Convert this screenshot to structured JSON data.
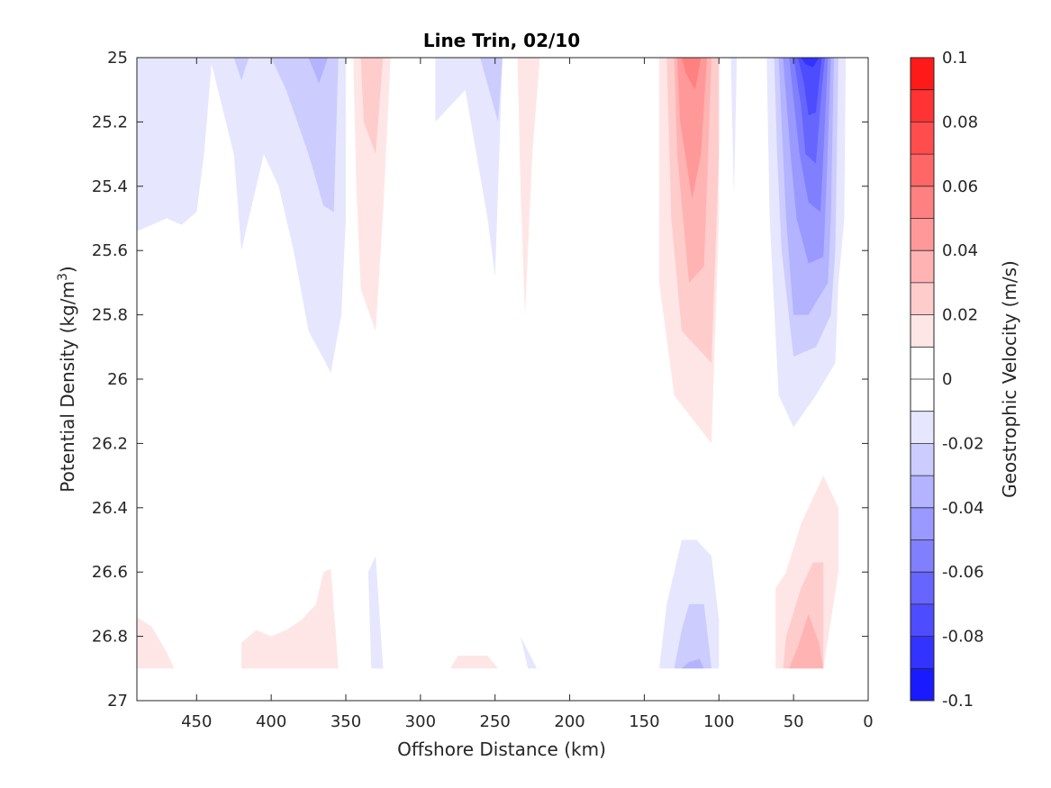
{
  "chart_data": {
    "type": "heatmap",
    "subtype": "filled-contour",
    "title": "Line Trin, 02/10",
    "xlabel": "Offshore Distance (km)",
    "ylabel_main": "Potential Density (kg/m",
    "ylabel_sup": "3",
    "ylabel_end": ")",
    "xlim": [
      490,
      0
    ],
    "ylim": [
      27,
      25
    ],
    "x_reversed": true,
    "y_reversed": true,
    "x_ticks": [
      450,
      400,
      350,
      300,
      250,
      200,
      150,
      100,
      50,
      0
    ],
    "x_tick_labels": [
      "450",
      "400",
      "350",
      "300",
      "250",
      "200",
      "150",
      "100",
      "50",
      "0"
    ],
    "y_ticks": [
      25,
      25.2,
      25.4,
      25.6,
      25.8,
      26,
      26.2,
      26.4,
      26.6,
      26.8,
      27
    ],
    "y_tick_labels": [
      "25",
      "25.2",
      "25.4",
      "25.6",
      "25.8",
      "26",
      "26.2",
      "26.4",
      "26.6",
      "26.8",
      "27"
    ],
    "colorbar": {
      "label": "Geostrophic Velocity (m/s)",
      "range": [
        -0.1,
        0.1
      ],
      "levels": [
        -0.1,
        -0.09,
        -0.08,
        -0.07,
        -0.06,
        -0.05,
        -0.04,
        -0.03,
        -0.02,
        -0.01,
        0,
        0.01,
        0.02,
        0.03,
        0.04,
        0.05,
        0.06,
        0.07,
        0.08,
        0.09,
        0.1
      ],
      "tick_values": [
        0.1,
        0.08,
        0.06,
        0.04,
        0.02,
        0,
        -0.02,
        -0.04,
        -0.06,
        -0.08,
        -0.1
      ],
      "tick_labels": [
        "0.1",
        "0.08",
        "0.06",
        "0.04",
        "0.02",
        "0",
        "-0.02",
        "-0.04",
        "-0.06",
        "-0.08",
        "-0.1"
      ],
      "colors_top_to_bottom": [
        "#ff1a1a",
        "#ff3333",
        "#ff4d4d",
        "#ff6666",
        "#ff8080",
        "#ff9999",
        "#ffb3b3",
        "#ffcccc",
        "#ffe6e6",
        "#ffffff",
        "#ffffff",
        "#e6e6ff",
        "#ccccff",
        "#b3b3ff",
        "#9999ff",
        "#8080ff",
        "#6666ff",
        "#4d4dff",
        "#3333ff",
        "#1a1aff"
      ]
    },
    "regions": [
      {
        "name": "neg-offshore-470-350",
        "level": -0.01,
        "points": [
          [
            490,
            25
          ],
          [
            350,
            25
          ],
          [
            350,
            25.5
          ],
          [
            353,
            25.8
          ],
          [
            360,
            25.98
          ],
          [
            375,
            25.85
          ],
          [
            385,
            25.6
          ],
          [
            395,
            25.4
          ],
          [
            405,
            25.3
          ],
          [
            415,
            25.5
          ],
          [
            420,
            25.6
          ],
          [
            425,
            25.3
          ],
          [
            440,
            25.02
          ],
          [
            445,
            25.3
          ],
          [
            450,
            25.48
          ],
          [
            460,
            25.52
          ],
          [
            470,
            25.5
          ],
          [
            490,
            25.54
          ]
        ]
      },
      {
        "name": "neg-400-360-lvl2",
        "level": -0.02,
        "points": [
          [
            400,
            25
          ],
          [
            355,
            25
          ],
          [
            358,
            25.48
          ],
          [
            365,
            25.46
          ],
          [
            375,
            25.3
          ],
          [
            390,
            25.1
          ],
          [
            400,
            25
          ]
        ]
      },
      {
        "name": "neg-420-lvl2",
        "level": -0.02,
        "points": [
          [
            425,
            25
          ],
          [
            415,
            25
          ],
          [
            420,
            25.07
          ]
        ]
      },
      {
        "name": "neg-370-lvl3",
        "level": -0.03,
        "points": [
          [
            375,
            25
          ],
          [
            362,
            25
          ],
          [
            368,
            25.08
          ]
        ]
      },
      {
        "name": "pos-330",
        "level": 0.01,
        "points": [
          [
            345,
            25
          ],
          [
            320,
            25
          ],
          [
            325,
            25.48
          ],
          [
            330,
            25.85
          ],
          [
            340,
            25.72
          ],
          [
            343,
            25.4
          ]
        ]
      },
      {
        "name": "pos-330-lvl2",
        "level": 0.02,
        "points": [
          [
            340,
            25
          ],
          [
            325,
            25
          ],
          [
            330,
            25.3
          ],
          [
            338,
            25.2
          ]
        ]
      },
      {
        "name": "neg-270-250",
        "level": -0.01,
        "points": [
          [
            290,
            25
          ],
          [
            245,
            25
          ],
          [
            250,
            25.68
          ],
          [
            255,
            25.5
          ],
          [
            270,
            25.1
          ],
          [
            290,
            25.2
          ]
        ]
      },
      {
        "name": "neg-260-lvl2",
        "level": -0.02,
        "points": [
          [
            260,
            25
          ],
          [
            245,
            25
          ],
          [
            248,
            25.2
          ]
        ]
      },
      {
        "name": "pos-225",
        "level": 0.01,
        "points": [
          [
            235,
            25
          ],
          [
            220,
            25
          ],
          [
            225,
            25.3
          ],
          [
            230,
            25.8
          ],
          [
            233,
            25.4
          ]
        ]
      },
      {
        "name": "pos-120-lvl1",
        "level": 0.01,
        "points": [
          [
            140,
            25
          ],
          [
            100,
            25
          ],
          [
            100,
            25.5
          ],
          [
            105,
            26.2
          ],
          [
            130,
            26.05
          ],
          [
            140,
            25.7
          ]
        ]
      },
      {
        "name": "pos-120-lvl2",
        "level": 0.02,
        "points": [
          [
            135,
            25
          ],
          [
            100,
            25
          ],
          [
            100,
            25.3
          ],
          [
            105,
            25.95
          ],
          [
            125,
            25.85
          ],
          [
            132,
            25.5
          ]
        ]
      },
      {
        "name": "pos-120-lvl3",
        "level": 0.03,
        "points": [
          [
            130,
            25
          ],
          [
            105,
            25
          ],
          [
            108,
            25.4
          ],
          [
            110,
            25.65
          ],
          [
            120,
            25.7
          ],
          [
            128,
            25.3
          ]
        ]
      },
      {
        "name": "pos-120-lvl4",
        "level": 0.04,
        "points": [
          [
            128,
            25
          ],
          [
            108,
            25
          ],
          [
            112,
            25.3
          ],
          [
            118,
            25.44
          ],
          [
            126,
            25.2
          ]
        ]
      },
      {
        "name": "pos-120-lvl5",
        "level": 0.05,
        "points": [
          [
            125,
            25
          ],
          [
            112,
            25
          ],
          [
            116,
            25.1
          ],
          [
            122,
            25.05
          ]
        ]
      },
      {
        "name": "neg-90",
        "level": -0.01,
        "points": [
          [
            92,
            25
          ],
          [
            88,
            25
          ],
          [
            90,
            25.43
          ]
        ]
      },
      {
        "name": "neg-coastal-lvl1",
        "level": -0.01,
        "points": [
          [
            68,
            25
          ],
          [
            15,
            25
          ],
          [
            16,
            25.5
          ],
          [
            20,
            25.7
          ],
          [
            22,
            25.95
          ],
          [
            35,
            26.05
          ],
          [
            50,
            26.15
          ],
          [
            60,
            26.05
          ],
          [
            66,
            25.5
          ]
        ]
      },
      {
        "name": "neg-coastal-lvl2",
        "level": -0.02,
        "points": [
          [
            63,
            25
          ],
          [
            20,
            25
          ],
          [
            22,
            25.6
          ],
          [
            25,
            25.8
          ],
          [
            35,
            25.9
          ],
          [
            50,
            25.93
          ],
          [
            58,
            25.6
          ],
          [
            61,
            25.3
          ]
        ]
      },
      {
        "name": "neg-coastal-lvl3",
        "level": -0.03,
        "points": [
          [
            60,
            25
          ],
          [
            23,
            25
          ],
          [
            25,
            25.5
          ],
          [
            27,
            25.7
          ],
          [
            40,
            25.8
          ],
          [
            50,
            25.8
          ],
          [
            55,
            25.5
          ]
        ]
      },
      {
        "name": "neg-coastal-lvl4",
        "level": -0.04,
        "points": [
          [
            57,
            25
          ],
          [
            25,
            25
          ],
          [
            28,
            25.4
          ],
          [
            30,
            25.62
          ],
          [
            40,
            25.64
          ],
          [
            48,
            25.5
          ],
          [
            52,
            25.3
          ]
        ]
      },
      {
        "name": "neg-coastal-lvl5",
        "level": -0.05,
        "points": [
          [
            53,
            25
          ],
          [
            27,
            25
          ],
          [
            30,
            25.3
          ],
          [
            32,
            25.48
          ],
          [
            40,
            25.45
          ],
          [
            46,
            25.3
          ]
        ]
      },
      {
        "name": "neg-coastal-lvl6",
        "level": -0.06,
        "points": [
          [
            50,
            25
          ],
          [
            29,
            25
          ],
          [
            32,
            25.15
          ],
          [
            35,
            25.33
          ],
          [
            42,
            25.3
          ],
          [
            45,
            25.15
          ]
        ]
      },
      {
        "name": "neg-coastal-lvl7",
        "level": -0.07,
        "points": [
          [
            47,
            25
          ],
          [
            31,
            25
          ],
          [
            33,
            25.08
          ],
          [
            35,
            25.17
          ],
          [
            40,
            25.18
          ],
          [
            43,
            25.08
          ]
        ]
      },
      {
        "name": "neg-coastal-lvl8",
        "level": -0.08,
        "points": [
          [
            45,
            25
          ],
          [
            33,
            25
          ],
          [
            37,
            25.03
          ],
          [
            42,
            25.02
          ]
        ]
      },
      {
        "name": "pos-coastal-deep-lvl1",
        "level": 0.01,
        "points": [
          [
            62,
            26.9
          ],
          [
            30,
            26.9
          ],
          [
            20,
            26.6
          ],
          [
            20,
            26.4
          ],
          [
            30,
            26.3
          ],
          [
            45,
            26.45
          ],
          [
            55,
            26.6
          ],
          [
            62,
            26.65
          ]
        ]
      },
      {
        "name": "pos-coastal-deep-lvl2",
        "level": 0.02,
        "points": [
          [
            57,
            26.9
          ],
          [
            30,
            26.9
          ],
          [
            30,
            26.57
          ],
          [
            37,
            26.57
          ],
          [
            45,
            26.65
          ],
          [
            55,
            26.8
          ]
        ]
      },
      {
        "name": "pos-coastal-deep-lvl3",
        "level": 0.03,
        "points": [
          [
            53,
            26.9
          ],
          [
            30,
            26.9
          ],
          [
            33,
            26.82
          ],
          [
            40,
            26.73
          ],
          [
            47,
            26.83
          ]
        ]
      },
      {
        "name": "neg-120-deep-lvl1",
        "level": -0.01,
        "points": [
          [
            140,
            26.9
          ],
          [
            100,
            26.9
          ],
          [
            100,
            26.75
          ],
          [
            105,
            26.55
          ],
          [
            115,
            26.5
          ],
          [
            125,
            26.5
          ],
          [
            135,
            26.7
          ]
        ]
      },
      {
        "name": "neg-120-deep-lvl2",
        "level": -0.02,
        "points": [
          [
            130,
            26.9
          ],
          [
            105,
            26.9
          ],
          [
            110,
            26.7
          ],
          [
            120,
            26.7
          ],
          [
            125,
            26.78
          ]
        ]
      },
      {
        "name": "neg-120-deep-lvl3",
        "level": -0.03,
        "points": [
          [
            125,
            26.9
          ],
          [
            110,
            26.9
          ],
          [
            113,
            26.87
          ],
          [
            120,
            26.88
          ]
        ]
      },
      {
        "name": "pos-offshore-deep",
        "level": 0.01,
        "points": [
          [
            490,
            26.74
          ],
          [
            480,
            26.77
          ],
          [
            470,
            26.85
          ],
          [
            465,
            26.9
          ],
          [
            490,
            26.9
          ]
        ]
      },
      {
        "name": "pos-400-deep",
        "level": 0.01,
        "points": [
          [
            420,
            26.9
          ],
          [
            420,
            26.82
          ],
          [
            410,
            26.78
          ],
          [
            400,
            26.8
          ],
          [
            390,
            26.78
          ],
          [
            380,
            26.75
          ],
          [
            370,
            26.7
          ],
          [
            365,
            26.6
          ],
          [
            360,
            26.59
          ],
          [
            355,
            26.9
          ]
        ]
      },
      {
        "name": "neg-330-deep",
        "level": -0.01,
        "points": [
          [
            335,
            26.6
          ],
          [
            330,
            26.55
          ],
          [
            325,
            26.9
          ],
          [
            333,
            26.9
          ]
        ]
      },
      {
        "name": "pos-260-deep",
        "level": 0.01,
        "points": [
          [
            280,
            26.9
          ],
          [
            275,
            26.86
          ],
          [
            255,
            26.86
          ],
          [
            248,
            26.9
          ]
        ]
      },
      {
        "name": "neg-230-deep",
        "level": -0.01,
        "points": [
          [
            233,
            26.8
          ],
          [
            228,
            26.9
          ],
          [
            222,
            26.9
          ]
        ]
      }
    ]
  }
}
